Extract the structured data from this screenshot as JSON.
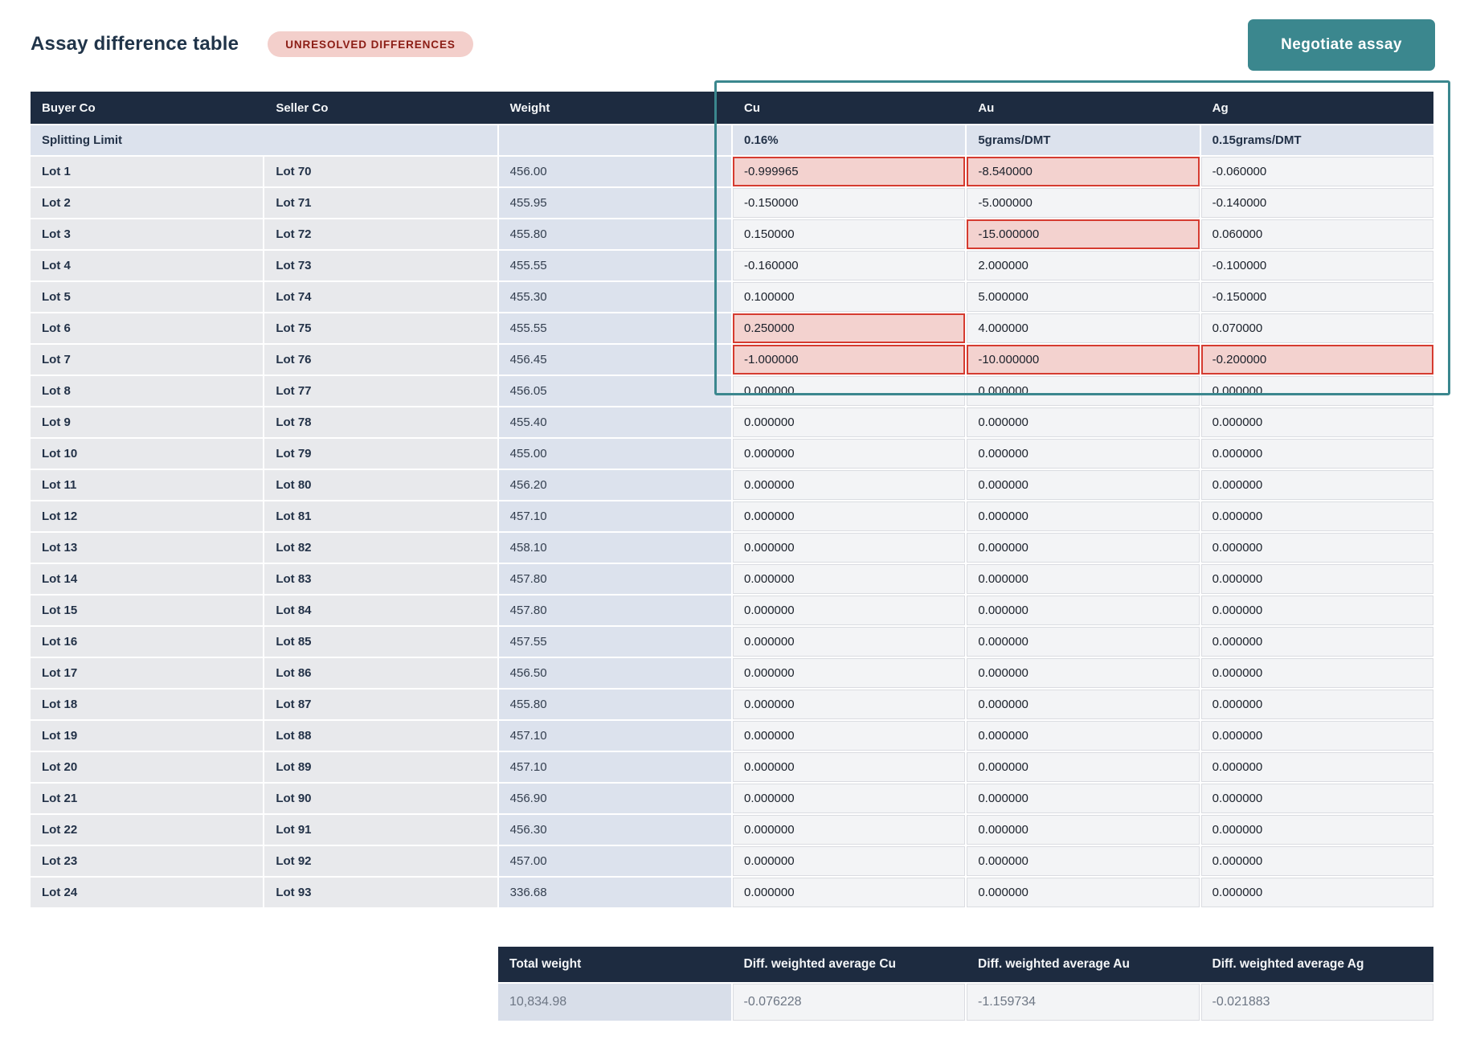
{
  "header": {
    "title": "Assay difference table",
    "badge": "UNRESOLVED DIFFERENCES",
    "negotiate_label": "Negotiate assay"
  },
  "table": {
    "columns": [
      "Buyer Co",
      "Seller Co",
      "Weight",
      "Cu",
      "Au",
      "Ag"
    ],
    "splitting_limit": {
      "label": "Splitting Limit",
      "cu": "0.16%",
      "au": "5grams/DMT",
      "ag": "0.15grams/DMT"
    },
    "rows": [
      {
        "buyer": "Lot 1",
        "seller": "Lot 70",
        "weight": "456.00",
        "cu": "-0.999965",
        "au": "-8.540000",
        "ag": "-0.060000",
        "flags": [
          "cu",
          "au"
        ]
      },
      {
        "buyer": "Lot 2",
        "seller": "Lot 71",
        "weight": "455.95",
        "cu": "-0.150000",
        "au": "-5.000000",
        "ag": "-0.140000",
        "flags": []
      },
      {
        "buyer": "Lot 3",
        "seller": "Lot 72",
        "weight": "455.80",
        "cu": "0.150000",
        "au": "-15.000000",
        "ag": "0.060000",
        "flags": [
          "au"
        ]
      },
      {
        "buyer": "Lot 4",
        "seller": "Lot 73",
        "weight": "455.55",
        "cu": "-0.160000",
        "au": "2.000000",
        "ag": "-0.100000",
        "flags": []
      },
      {
        "buyer": "Lot 5",
        "seller": "Lot 74",
        "weight": "455.30",
        "cu": "0.100000",
        "au": "5.000000",
        "ag": "-0.150000",
        "flags": []
      },
      {
        "buyer": "Lot 6",
        "seller": "Lot 75",
        "weight": "455.55",
        "cu": "0.250000",
        "au": "4.000000",
        "ag": "0.070000",
        "flags": [
          "cu"
        ]
      },
      {
        "buyer": "Lot 7",
        "seller": "Lot 76",
        "weight": "456.45",
        "cu": "-1.000000",
        "au": "-10.000000",
        "ag": "-0.200000",
        "flags": [
          "cu",
          "au",
          "ag"
        ]
      },
      {
        "buyer": "Lot 8",
        "seller": "Lot 77",
        "weight": "456.05",
        "cu": "0.000000",
        "au": "0.000000",
        "ag": "0.000000",
        "flags": []
      },
      {
        "buyer": "Lot 9",
        "seller": "Lot 78",
        "weight": "455.40",
        "cu": "0.000000",
        "au": "0.000000",
        "ag": "0.000000",
        "flags": []
      },
      {
        "buyer": "Lot 10",
        "seller": "Lot 79",
        "weight": "455.00",
        "cu": "0.000000",
        "au": "0.000000",
        "ag": "0.000000",
        "flags": []
      },
      {
        "buyer": "Lot 11",
        "seller": "Lot 80",
        "weight": "456.20",
        "cu": "0.000000",
        "au": "0.000000",
        "ag": "0.000000",
        "flags": []
      },
      {
        "buyer": "Lot 12",
        "seller": "Lot 81",
        "weight": "457.10",
        "cu": "0.000000",
        "au": "0.000000",
        "ag": "0.000000",
        "flags": []
      },
      {
        "buyer": "Lot 13",
        "seller": "Lot 82",
        "weight": "458.10",
        "cu": "0.000000",
        "au": "0.000000",
        "ag": "0.000000",
        "flags": []
      },
      {
        "buyer": "Lot 14",
        "seller": "Lot 83",
        "weight": "457.80",
        "cu": "0.000000",
        "au": "0.000000",
        "ag": "0.000000",
        "flags": []
      },
      {
        "buyer": "Lot 15",
        "seller": "Lot 84",
        "weight": "457.80",
        "cu": "0.000000",
        "au": "0.000000",
        "ag": "0.000000",
        "flags": []
      },
      {
        "buyer": "Lot 16",
        "seller": "Lot 85",
        "weight": "457.55",
        "cu": "0.000000",
        "au": "0.000000",
        "ag": "0.000000",
        "flags": []
      },
      {
        "buyer": "Lot 17",
        "seller": "Lot 86",
        "weight": "456.50",
        "cu": "0.000000",
        "au": "0.000000",
        "ag": "0.000000",
        "flags": []
      },
      {
        "buyer": "Lot 18",
        "seller": "Lot 87",
        "weight": "455.80",
        "cu": "0.000000",
        "au": "0.000000",
        "ag": "0.000000",
        "flags": []
      },
      {
        "buyer": "Lot 19",
        "seller": "Lot 88",
        "weight": "457.10",
        "cu": "0.000000",
        "au": "0.000000",
        "ag": "0.000000",
        "flags": []
      },
      {
        "buyer": "Lot 20",
        "seller": "Lot 89",
        "weight": "457.10",
        "cu": "0.000000",
        "au": "0.000000",
        "ag": "0.000000",
        "flags": []
      },
      {
        "buyer": "Lot 21",
        "seller": "Lot 90",
        "weight": "456.90",
        "cu": "0.000000",
        "au": "0.000000",
        "ag": "0.000000",
        "flags": []
      },
      {
        "buyer": "Lot 22",
        "seller": "Lot 91",
        "weight": "456.30",
        "cu": "0.000000",
        "au": "0.000000",
        "ag": "0.000000",
        "flags": []
      },
      {
        "buyer": "Lot 23",
        "seller": "Lot 92",
        "weight": "457.00",
        "cu": "0.000000",
        "au": "0.000000",
        "ag": "0.000000",
        "flags": []
      },
      {
        "buyer": "Lot 24",
        "seller": "Lot 93",
        "weight": "336.68",
        "cu": "0.000000",
        "au": "0.000000",
        "ag": "0.000000",
        "flags": []
      }
    ]
  },
  "summary": {
    "columns": [
      "Total weight",
      "Diff. weighted average Cu",
      "Diff. weighted average Au",
      "Diff. weighted average Ag"
    ],
    "values": {
      "total_weight": "10,834.98",
      "avg_cu": "-0.076228",
      "avg_au": "-1.159734",
      "avg_ag": "-0.021883"
    }
  },
  "colors": {
    "header_navy": "#1d2b40",
    "accent_teal": "#3b878e",
    "alert_red_border": "#d53b30",
    "alert_red_fill": "#f3d2cf",
    "badge_bg": "#f3cfcb",
    "badge_text": "#8b1d15",
    "weight_col_bg": "#dce2ed",
    "left_col_bg": "#e8e9ec",
    "value_cell_bg": "#f3f4f6"
  }
}
